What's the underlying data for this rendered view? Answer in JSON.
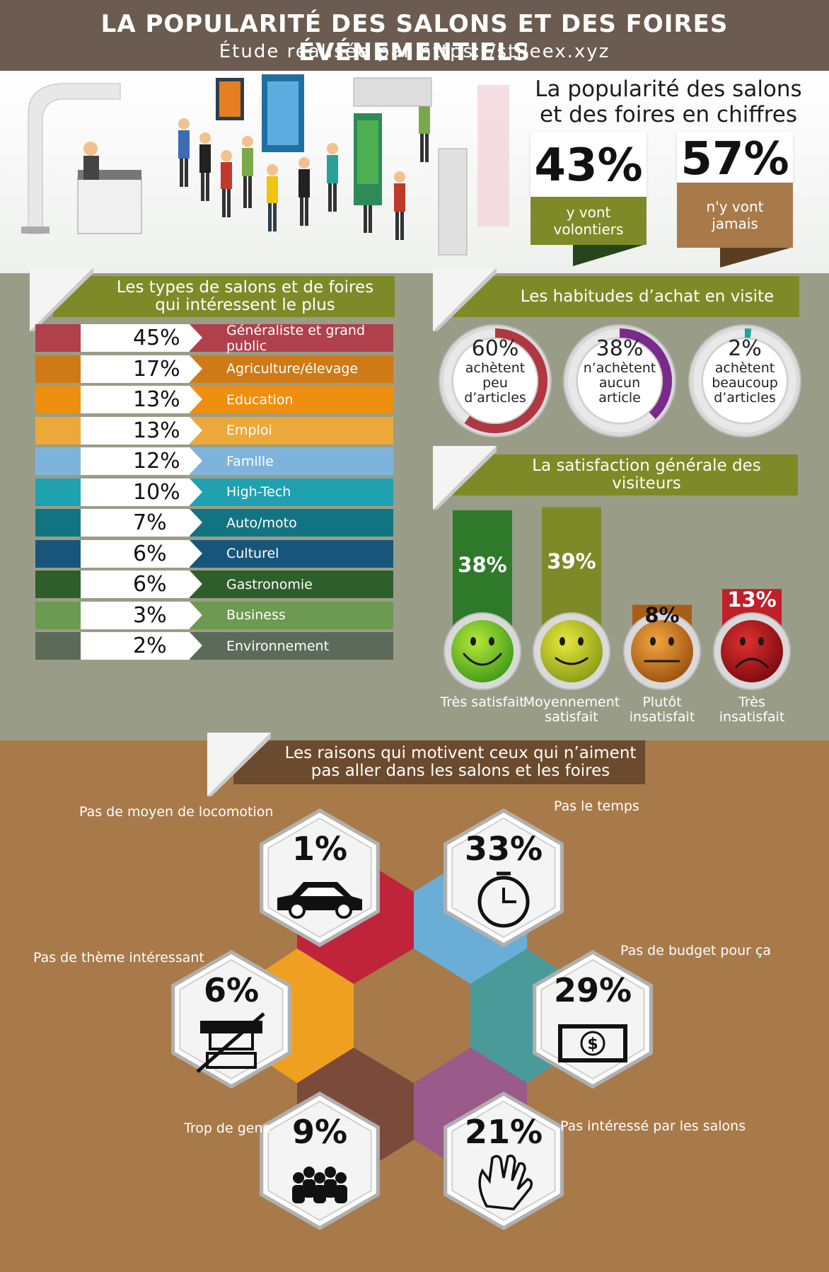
{
  "header": {
    "title": "LA POPULARITÉ DES SALONS ET DES FOIRES ÉVÉNEMENTIELS",
    "subtitle": "Étude réalisée par https://stileex.xyz"
  },
  "popularity": {
    "title_line1": "La popularité des salons",
    "title_line2": "et des foires en chiffres",
    "go": {
      "value": "43%",
      "label_line1": "y vont",
      "label_line2": "volontiers",
      "color": "#7e8a27"
    },
    "never": {
      "value": "57%",
      "label_line1": "n'y vont",
      "label_line2": "jamais",
      "color": "#a87a4a"
    }
  },
  "types_section": {
    "title_line1": "Les types de salons et de foires",
    "title_line2": "qui intéressent le plus"
  },
  "purchase_section": {
    "title": "Les habitudes d’achat en visite"
  },
  "satisfaction_section": {
    "title": "La satisfaction générale des visiteurs"
  },
  "reasons_section": {
    "title_line1": "Les raisons qui motivent ceux qui n’aiment",
    "title_line2": "pas aller dans les salons et les foires"
  },
  "colors": {
    "header": "#6b5b50",
    "olive": "#7e8a27",
    "mid_bg": "#999d88",
    "bottom_bg": "#a87a4a"
  },
  "chart_data": [
    {
      "type": "bar",
      "title": "Les types de salons et de foires qui intéressent le plus",
      "categories": [
        "Généraliste et grand public",
        "Agriculture/élevage",
        "Education",
        "Emploi",
        "Famille",
        "High-Tech",
        "Auto/moto",
        "Culturel",
        "Gastronomie",
        "Business",
        "Environnement"
      ],
      "values": [
        45,
        17,
        13,
        13,
        12,
        10,
        7,
        6,
        6,
        3,
        2
      ],
      "labels": [
        "45%",
        "17%",
        "13%",
        "13%",
        "12%",
        "10%",
        "7%",
        "6%",
        "6%",
        "3%",
        "2%"
      ],
      "colors": [
        "#b0404c",
        "#cf7a17",
        "#ee8f10",
        "#eda83a",
        "#7eb4dc",
        "#1fa1b0",
        "#127481",
        "#17567a",
        "#2e5f2a",
        "#6b9a50",
        "#5c6a5a"
      ]
    },
    {
      "type": "pie",
      "title": "Les habitudes d’achat en visite",
      "items": [
        {
          "value": 60,
          "label": "60%",
          "text": [
            "achètent",
            "peu",
            "d’articles"
          ],
          "color": "#b03840"
        },
        {
          "value": 38,
          "label": "38%",
          "text": [
            "n’achètent",
            "aucun",
            "article"
          ],
          "color": "#7a2a8a"
        },
        {
          "value": 2,
          "label": "2%",
          "text": [
            "achètent",
            "beaucoup",
            "d’articles"
          ],
          "color": "#1aa6a0"
        }
      ]
    },
    {
      "type": "bar",
      "title": "La satisfaction générale des visiteurs",
      "categories": [
        "Très satisfait",
        "Moyennement satisfait",
        "Plutôt insatisfait",
        "Très insatisfait"
      ],
      "category_lines": [
        [
          "Très satisfait"
        ],
        [
          "Moyennement",
          "satisfait"
        ],
        [
          "Plutôt",
          "insatisfait"
        ],
        [
          "Très",
          "insatisfait"
        ]
      ],
      "values": [
        38,
        39,
        8,
        13
      ],
      "labels": [
        "38%",
        "39%",
        "8%",
        "13%"
      ],
      "colors": [
        "#2f7a2a",
        "#7e8a27",
        "#a85d18",
        "#c0202a"
      ]
    },
    {
      "type": "table",
      "title": "Les raisons qui motivent ceux qui n’aiment pas aller dans les salons et les foires",
      "categories": [
        "Pas de moyen de locomotion",
        "Pas le temps",
        "Pas de thème intéressant",
        "Pas de budget pour ça",
        "Trop de gens",
        "Pas intéressé par les salons"
      ],
      "values": [
        1,
        33,
        6,
        29,
        9,
        21
      ],
      "labels": [
        "1%",
        "33%",
        "6%",
        "29%",
        "9%",
        "21%"
      ],
      "icons": [
        "car-icon",
        "clock-icon",
        "crossed-stand-icon",
        "banknote-icon",
        "crowd-icon",
        "waving-hand-icon"
      ]
    }
  ]
}
